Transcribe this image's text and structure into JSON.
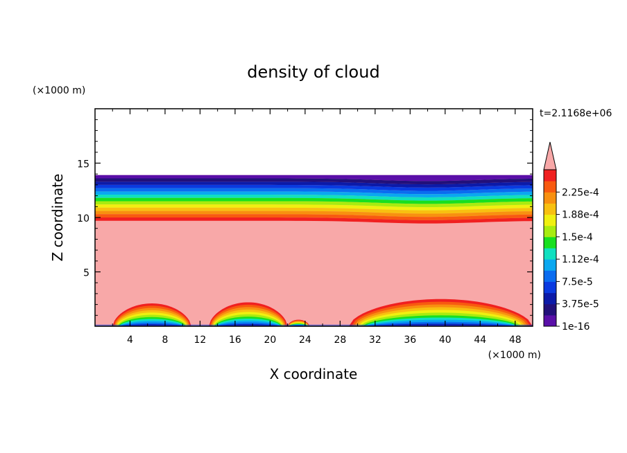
{
  "chart_data": {
    "type": "heatmap",
    "title": "density of cloud",
    "time_label": "t=2.1168e+06",
    "xlabel": "X coordinate",
    "ylabel": "Z coordinate",
    "x_unit": "(×1000 m)",
    "y_unit": "(×1000 m)",
    "xlim": [
      0,
      50
    ],
    "ylim": [
      0,
      20
    ],
    "x_ticks": [
      4,
      8,
      12,
      16,
      20,
      24,
      28,
      32,
      36,
      40,
      44,
      48
    ],
    "y_ticks": [
      5,
      10,
      15
    ],
    "colorbar": {
      "labels": [
        "2.25e-4",
        "1.88e-4",
        "1.5e-4",
        "1.12e-4",
        "7.5e-5",
        "3.75e-5",
        "1e-16"
      ],
      "levels": [
        1e-16,
        1.875e-05,
        3.75e-05,
        5.625e-05,
        7.5e-05,
        9.375e-05,
        0.0001125,
        0.00013125,
        0.00015,
        0.00016875,
        0.0001875,
        0.00020625,
        0.000225,
        0.00024375
      ],
      "colors": [
        "#5a0fa8",
        "#22107a",
        "#0c1aa8",
        "#0a3ae0",
        "#0a6cf0",
        "#0aa8f0",
        "#10e0c0",
        "#18e020",
        "#a8ec10",
        "#f0f010",
        "#f8c010",
        "#f89010",
        "#f85a10",
        "#f02020"
      ],
      "overflow_color": "#f8a8a8"
    },
    "fields": {
      "cloud_top_z": 13.9,
      "cloud_base_z": 9.7,
      "saturated_value": "above 2.25e-4",
      "surface_bumps": [
        {
          "x_start": 2,
          "x_end": 11,
          "peak_z": 2.1
        },
        {
          "x_start": 13,
          "x_end": 22,
          "peak_z": 2.2
        },
        {
          "x_start": 22,
          "x_end": 24.5,
          "peak_z": 0.6
        },
        {
          "x_start": 29,
          "x_end": 50,
          "peak_z": 2.5
        }
      ]
    }
  }
}
